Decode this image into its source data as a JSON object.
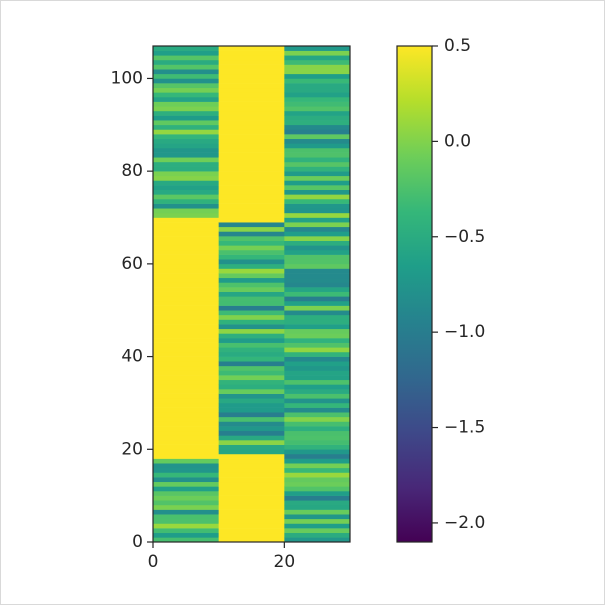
{
  "chart_data": {
    "type": "heatmap",
    "title": "",
    "xlabel": "",
    "ylabel": "",
    "colormap": "viridis",
    "x_range": [
      0,
      30
    ],
    "y_range": [
      0,
      107
    ],
    "x_ticks": [
      0,
      20
    ],
    "x_tick_labels": [
      "0",
      "20"
    ],
    "y_ticks": [
      0,
      20,
      40,
      60,
      80,
      100
    ],
    "y_tick_labels": [
      "0",
      "20",
      "40",
      "60",
      "80",
      "100"
    ],
    "columns": [
      {
        "x_start": 0,
        "x_end": 10,
        "segments": [
          {
            "y_start": 0,
            "y_end": 18,
            "kind": "noise",
            "mean": -0.45,
            "spread": 0.55
          },
          {
            "y_start": 18,
            "y_end": 70,
            "kind": "constant",
            "value": 0.5
          },
          {
            "y_start": 70,
            "y_end": 107,
            "kind": "noise",
            "mean": -0.4,
            "spread": 0.5
          }
        ]
      },
      {
        "x_start": 10,
        "x_end": 20,
        "segments": [
          {
            "y_start": 0,
            "y_end": 19,
            "kind": "constant",
            "value": 0.5
          },
          {
            "y_start": 19,
            "y_end": 69,
            "kind": "noise",
            "mean": -0.45,
            "spread": 0.55
          },
          {
            "y_start": 69,
            "y_end": 107,
            "kind": "constant",
            "value": 0.5
          }
        ]
      },
      {
        "x_start": 20,
        "x_end": 30,
        "segments": [
          {
            "y_start": 0,
            "y_end": 107,
            "kind": "noise",
            "mean": -0.45,
            "spread": 0.55
          }
        ]
      }
    ],
    "colorbar": {
      "min": -2.1,
      "max": 0.5,
      "ticks": [
        0.5,
        0.0,
        -0.5,
        -1.0,
        -1.5,
        -2.0
      ],
      "tick_labels": [
        "0.5",
        "0.0",
        "−0.5",
        "−1.0",
        "−1.5",
        "−2.0"
      ]
    }
  }
}
